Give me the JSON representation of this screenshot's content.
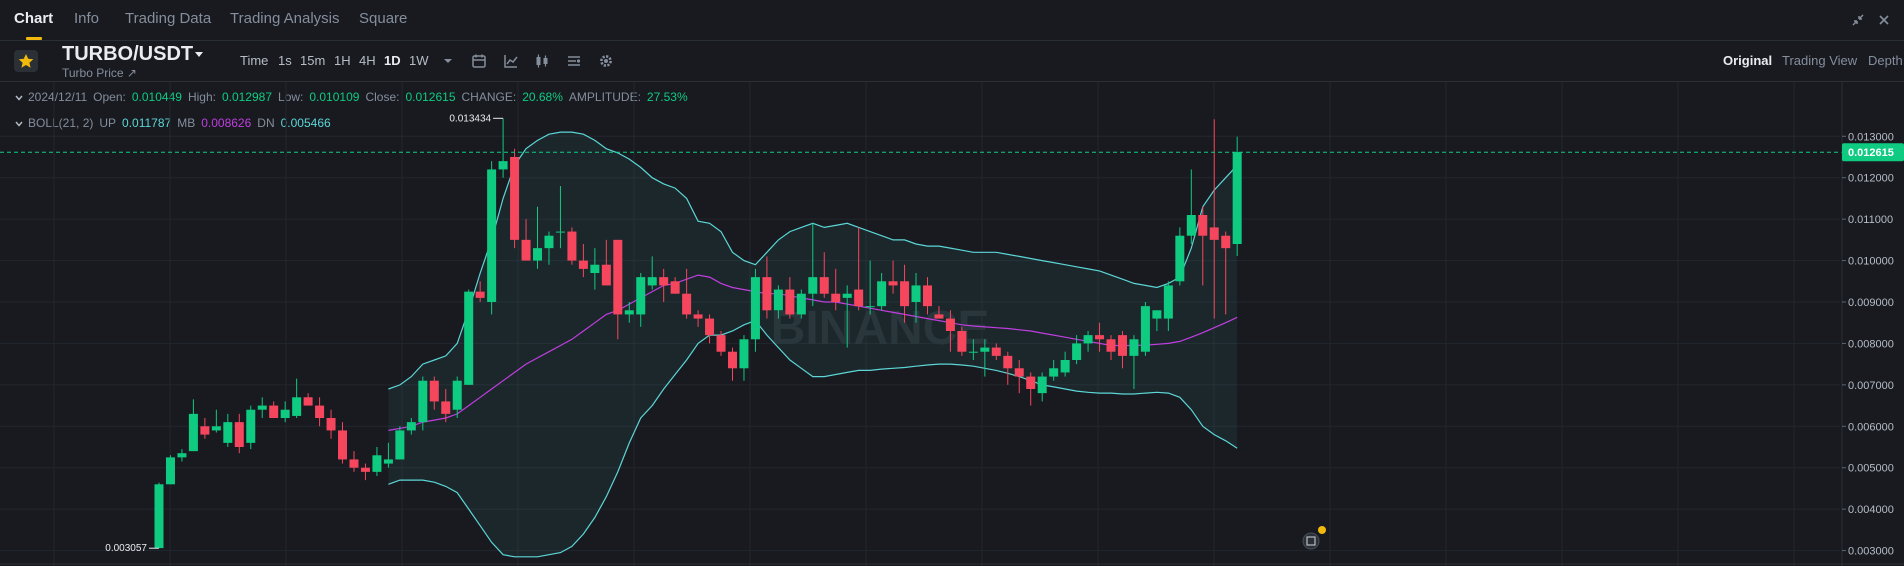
{
  "nav": {
    "tabs": [
      "Chart",
      "Info",
      "Trading Data",
      "Trading Analysis",
      "Square"
    ],
    "active": "Chart"
  },
  "header": {
    "pair": "TURBO/USDT",
    "subtitle": "Turbo Price ↗",
    "intervals": [
      "Time",
      "1s",
      "15m",
      "1H",
      "4H",
      "1D",
      "1W"
    ],
    "active_interval": "1D",
    "views": [
      "Original",
      "Trading View",
      "Depth"
    ],
    "active_view": "Original"
  },
  "ohlc": {
    "date": "2024/12/11",
    "open_label": "Open:",
    "open": "0.010449",
    "high_label": "High:",
    "high": "0.012987",
    "low_label": "Low:",
    "low": "0.010109",
    "close_label": "Close:",
    "close": "0.012615",
    "change_label": "CHANGE:",
    "change": "20.68%",
    "amplitude_label": "AMPLITUDE:",
    "amplitude": "27.53%"
  },
  "boll": {
    "label": "BOLL(21, 2)",
    "up_label": "UP",
    "up": "0.011787",
    "mb_label": "MB",
    "mb": "0.008626",
    "dn_label": "DN",
    "dn": "0.005466"
  },
  "colors": {
    "up": "#0ecb81",
    "down": "#f6465d",
    "mb": "#c03ee0",
    "band": "#5cd6d6",
    "accent": "#f0b90b"
  },
  "chart_data": {
    "type": "candlestick",
    "ylim": [
      0.0027,
      0.0139
    ],
    "y_ticks": [
      "0.013000",
      "0.012000",
      "0.011000",
      "0.010000",
      "0.009000",
      "0.008000",
      "0.007000",
      "0.006000",
      "0.005000",
      "0.004000",
      "0.003000"
    ],
    "last_price_label": "0.012615",
    "max_label": "0.013434",
    "min_label": "0.003057",
    "watermark": "BINANCE",
    "candles": [
      [
        0.00306,
        0.00464,
        0.00306,
        0.0046
      ],
      [
        0.0046,
        0.0053,
        0.0046,
        0.00525
      ],
      [
        0.00525,
        0.00545,
        0.00515,
        0.00535
      ],
      [
        0.0054,
        0.00665,
        0.0054,
        0.0063
      ],
      [
        0.006,
        0.0062,
        0.0057,
        0.0058
      ],
      [
        0.0059,
        0.0064,
        0.00585,
        0.006
      ],
      [
        0.0056,
        0.0063,
        0.0055,
        0.0061
      ],
      [
        0.0061,
        0.0063,
        0.00535,
        0.0055
      ],
      [
        0.0056,
        0.0065,
        0.00545,
        0.0064
      ],
      [
        0.0064,
        0.0067,
        0.0062,
        0.0065
      ],
      [
        0.0065,
        0.0066,
        0.0062,
        0.0062
      ],
      [
        0.0062,
        0.0066,
        0.0061,
        0.0064
      ],
      [
        0.00625,
        0.00715,
        0.0062,
        0.0067
      ],
      [
        0.0067,
        0.0068,
        0.0065,
        0.0065
      ],
      [
        0.0065,
        0.0067,
        0.006,
        0.0062
      ],
      [
        0.0062,
        0.0064,
        0.0057,
        0.0059
      ],
      [
        0.0059,
        0.0061,
        0.0051,
        0.0052
      ],
      [
        0.0052,
        0.0054,
        0.0049,
        0.005
      ],
      [
        0.005,
        0.0051,
        0.0047,
        0.0049
      ],
      [
        0.0049,
        0.0055,
        0.0048,
        0.0053
      ],
      [
        0.0051,
        0.0056,
        0.005,
        0.0052
      ],
      [
        0.0052,
        0.006,
        0.0052,
        0.0059
      ],
      [
        0.0059,
        0.0062,
        0.0058,
        0.0061
      ],
      [
        0.0061,
        0.0072,
        0.0059,
        0.0071
      ],
      [
        0.0071,
        0.0072,
        0.0064,
        0.0066
      ],
      [
        0.0066,
        0.0069,
        0.0061,
        0.0063
      ],
      [
        0.0064,
        0.0072,
        0.0062,
        0.0071
      ],
      [
        0.007,
        0.0093,
        0.007,
        0.00925
      ],
      [
        0.00925,
        0.0095,
        0.009,
        0.0091
      ],
      [
        0.009,
        0.0124,
        0.0087,
        0.0122
      ],
      [
        0.0122,
        0.01343,
        0.012,
        0.0124
      ],
      [
        0.0125,
        0.0127,
        0.0103,
        0.0105
      ],
      [
        0.0105,
        0.011,
        0.01,
        0.01
      ],
      [
        0.01,
        0.0113,
        0.0098,
        0.0103
      ],
      [
        0.0103,
        0.0107,
        0.0099,
        0.0106
      ],
      [
        0.0107,
        0.0118,
        0.0103,
        0.0107
      ],
      [
        0.0107,
        0.0108,
        0.0099,
        0.01
      ],
      [
        0.01,
        0.0104,
        0.0096,
        0.0098
      ],
      [
        0.0097,
        0.0103,
        0.0093,
        0.0099
      ],
      [
        0.0099,
        0.0105,
        0.0095,
        0.0094
      ],
      [
        0.0105,
        0.0105,
        0.0081,
        0.0087
      ],
      [
        0.0087,
        0.009,
        0.0085,
        0.0088
      ],
      [
        0.0087,
        0.0097,
        0.0084,
        0.0096
      ],
      [
        0.0094,
        0.0101,
        0.0093,
        0.0096
      ],
      [
        0.0096,
        0.0098,
        0.009,
        0.0094
      ],
      [
        0.0095,
        0.0096,
        0.0092,
        0.0092
      ],
      [
        0.0092,
        0.0098,
        0.0086,
        0.0087
      ],
      [
        0.0087,
        0.0088,
        0.0084,
        0.0086
      ],
      [
        0.0086,
        0.0087,
        0.008,
        0.0082
      ],
      [
        0.0082,
        0.0083,
        0.0077,
        0.0078
      ],
      [
        0.0078,
        0.0079,
        0.0071,
        0.0074
      ],
      [
        0.0074,
        0.0082,
        0.0071,
        0.0081
      ],
      [
        0.0081,
        0.0098,
        0.0078,
        0.0096
      ],
      [
        0.0096,
        0.0101,
        0.0086,
        0.0088
      ],
      [
        0.0088,
        0.0094,
        0.0086,
        0.0093
      ],
      [
        0.0093,
        0.0096,
        0.0086,
        0.0087
      ],
      [
        0.0087,
        0.0093,
        0.0086,
        0.0092
      ],
      [
        0.0092,
        0.0109,
        0.0089,
        0.0096
      ],
      [
        0.0096,
        0.0102,
        0.0091,
        0.0092
      ],
      [
        0.0092,
        0.0098,
        0.0088,
        0.009
      ],
      [
        0.0091,
        0.0094,
        0.0079,
        0.0092
      ],
      [
        0.0093,
        0.0108,
        0.0088,
        0.0089
      ],
      [
        0.0089,
        0.01,
        0.0087,
        0.0089
      ],
      [
        0.0089,
        0.0097,
        0.0088,
        0.0095
      ],
      [
        0.0095,
        0.01,
        0.0092,
        0.0094
      ],
      [
        0.0095,
        0.0099,
        0.0085,
        0.0089
      ],
      [
        0.009,
        0.0097,
        0.0085,
        0.0094
      ],
      [
        0.0094,
        0.0096,
        0.0087,
        0.0089
      ],
      [
        0.0087,
        0.0089,
        0.0086,
        0.0086
      ],
      [
        0.0086,
        0.0088,
        0.0078,
        0.0083
      ],
      [
        0.0083,
        0.0084,
        0.0077,
        0.0078
      ],
      [
        0.0078,
        0.0081,
        0.0076,
        0.0078
      ],
      [
        0.0078,
        0.0081,
        0.0072,
        0.0079
      ],
      [
        0.0079,
        0.008,
        0.0076,
        0.0077
      ],
      [
        0.0077,
        0.0078,
        0.007,
        0.0074
      ],
      [
        0.0074,
        0.0076,
        0.0068,
        0.0072
      ],
      [
        0.0072,
        0.0073,
        0.0065,
        0.0069
      ],
      [
        0.0068,
        0.0073,
        0.0066,
        0.0072
      ],
      [
        0.0072,
        0.0076,
        0.0071,
        0.0074
      ],
      [
        0.0073,
        0.0078,
        0.0072,
        0.0076
      ],
      [
        0.0076,
        0.0082,
        0.0075,
        0.008
      ],
      [
        0.008,
        0.0083,
        0.0078,
        0.0082
      ],
      [
        0.0082,
        0.0085,
        0.0078,
        0.0081
      ],
      [
        0.0081,
        0.0082,
        0.0076,
        0.0078
      ],
      [
        0.0082,
        0.0083,
        0.0074,
        0.0077
      ],
      [
        0.0077,
        0.0082,
        0.0069,
        0.0081
      ],
      [
        0.0078,
        0.009,
        0.0077,
        0.0089
      ],
      [
        0.0086,
        0.0088,
        0.0083,
        0.0088
      ],
      [
        0.0086,
        0.0095,
        0.0083,
        0.0094
      ],
      [
        0.0095,
        0.0108,
        0.0094,
        0.0106
      ],
      [
        0.0106,
        0.0122,
        0.0104,
        0.0111
      ],
      [
        0.0111,
        0.0113,
        0.0094,
        0.0106
      ],
      [
        0.0108,
        0.01341,
        0.0086,
        0.0105
      ],
      [
        0.0106,
        0.0107,
        0.0087,
        0.0103
      ],
      [
        0.0104,
        0.01299,
        0.01011,
        0.01262
      ]
    ],
    "boll": {
      "start_index": 20,
      "up": [
        0.0069,
        0.007,
        0.0072,
        0.0075,
        0.0076,
        0.0077,
        0.008,
        0.0088,
        0.0097,
        0.0105,
        0.0115,
        0.0123,
        0.0127,
        0.0129,
        0.01305,
        0.0131,
        0.0131,
        0.01305,
        0.0129,
        0.0127,
        0.0126,
        0.01245,
        0.01225,
        0.012,
        0.01185,
        0.01175,
        0.0115,
        0.01095,
        0.0109,
        0.0107,
        0.0102,
        0.01,
        0.0099,
        0.0102,
        0.0105,
        0.0107,
        0.0108,
        0.0109,
        0.0108,
        0.01085,
        0.0109,
        0.0108,
        0.0107,
        0.0106,
        0.0105,
        0.0105,
        0.0104,
        0.01035,
        0.01035,
        0.0103,
        0.01025,
        0.0102,
        0.0102,
        0.0102,
        0.01015,
        0.0101,
        0.01005,
        0.01,
        0.00995,
        0.0099,
        0.00985,
        0.0098,
        0.00975,
        0.00965,
        0.00955,
        0.00945,
        0.0094,
        0.00935,
        0.00945,
        0.0096,
        0.0103,
        0.0113,
        0.0117,
        0.012,
        0.0123
      ],
      "mb": [
        0.0059,
        0.00595,
        0.006,
        0.0061,
        0.00615,
        0.0062,
        0.0063,
        0.0065,
        0.0067,
        0.0069,
        0.0071,
        0.0073,
        0.0075,
        0.00765,
        0.0078,
        0.00795,
        0.0081,
        0.0083,
        0.0085,
        0.0087,
        0.0088,
        0.00895,
        0.0091,
        0.00925,
        0.0094,
        0.00945,
        0.00955,
        0.00965,
        0.0096,
        0.00945,
        0.00935,
        0.0093,
        0.00925,
        0.0092,
        0.0092,
        0.00915,
        0.0091,
        0.00905,
        0.009,
        0.009,
        0.00895,
        0.0089,
        0.00885,
        0.0088,
        0.00875,
        0.0087,
        0.00865,
        0.0086,
        0.00855,
        0.0085,
        0.00845,
        0.00842,
        0.0084,
        0.00838,
        0.00836,
        0.00833,
        0.0083,
        0.00825,
        0.0082,
        0.00815,
        0.0081,
        0.00805,
        0.008,
        0.00795,
        0.00795,
        0.00795,
        0.00796,
        0.00798,
        0.008,
        0.00805,
        0.00815,
        0.00826,
        0.00838,
        0.0085,
        0.00863
      ],
      "dn": [
        0.0046,
        0.0047,
        0.0047,
        0.0047,
        0.00465,
        0.00455,
        0.0044,
        0.004,
        0.0036,
        0.0032,
        0.0029,
        0.00285,
        0.00285,
        0.00285,
        0.0029,
        0.00295,
        0.0031,
        0.0034,
        0.0038,
        0.0043,
        0.0049,
        0.0056,
        0.0062,
        0.0065,
        0.0069,
        0.00725,
        0.0076,
        0.008,
        0.0082,
        0.0082,
        0.0083,
        0.00845,
        0.00855,
        0.0082,
        0.0079,
        0.0076,
        0.0074,
        0.0072,
        0.0072,
        0.00725,
        0.0073,
        0.00735,
        0.00735,
        0.00738,
        0.0074,
        0.00742,
        0.00745,
        0.00748,
        0.0075,
        0.0075,
        0.00748,
        0.00745,
        0.0074,
        0.00735,
        0.00728,
        0.0072,
        0.0071,
        0.007,
        0.00695,
        0.0069,
        0.00685,
        0.00682,
        0.0068,
        0.0068,
        0.00678,
        0.00678,
        0.0068,
        0.00682,
        0.0068,
        0.0067,
        0.0064,
        0.006,
        0.0058,
        0.00565,
        0.00547
      ]
    }
  }
}
